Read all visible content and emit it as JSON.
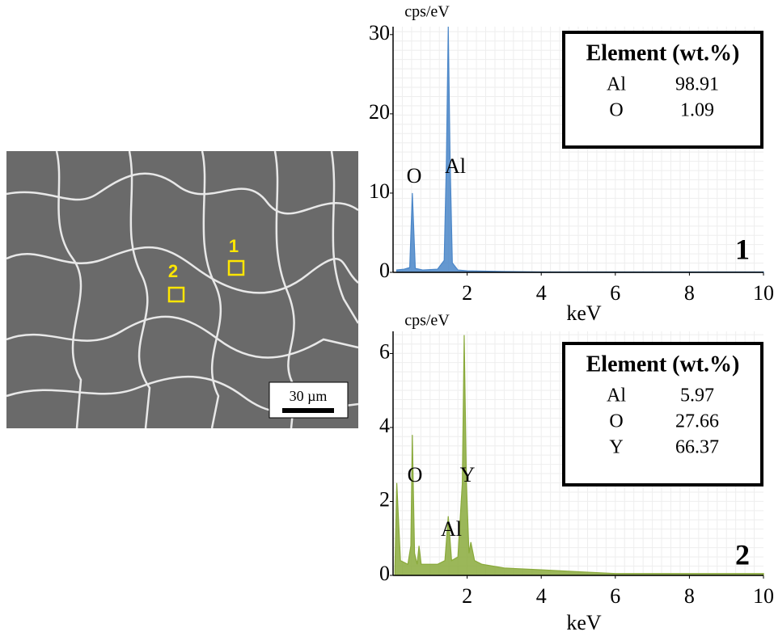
{
  "micrograph": {
    "markers": [
      "1",
      "2"
    ],
    "scale_bar": "30 µm"
  },
  "chart_data": [
    {
      "type": "area",
      "y_label": "cps/eV",
      "x_label": "keV",
      "panel": "1",
      "color": "#4a86c8",
      "peak_labels": [
        "O",
        "Al"
      ],
      "x": [
        0.1,
        0.3,
        0.45,
        0.52,
        0.6,
        0.8,
        1.2,
        1.38,
        1.44,
        1.49,
        1.54,
        1.6,
        1.75,
        2,
        3,
        4,
        5,
        6,
        7,
        8,
        9,
        10
      ],
      "values": [
        0.3,
        0.4,
        0.6,
        10,
        0.5,
        0.3,
        0.4,
        1.5,
        14,
        31,
        14,
        1.2,
        0.3,
        0.2,
        0.1,
        0.05,
        0.05,
        0.05,
        0.05,
        0.05,
        0.05,
        0.05
      ],
      "xlim": [
        0,
        10
      ],
      "xticks": [
        2,
        4,
        6,
        8,
        10
      ],
      "ylim": [
        0,
        31
      ],
      "yticks": [
        0,
        10,
        20,
        30
      ],
      "grid": true,
      "table": {
        "header": "Element (wt.%)",
        "rows": [
          [
            "Al",
            "98.91"
          ],
          [
            "O",
            "1.09"
          ]
        ]
      }
    },
    {
      "type": "area",
      "y_label": "cps/eV",
      "x_label": "keV",
      "panel": "2",
      "color": "#8aaa3c",
      "peak_labels": [
        "O",
        "Y",
        "Al"
      ],
      "x": [
        0.05,
        0.1,
        0.2,
        0.4,
        0.48,
        0.52,
        0.58,
        0.65,
        0.7,
        0.76,
        0.9,
        1.2,
        1.4,
        1.49,
        1.58,
        1.75,
        1.87,
        1.92,
        1.98,
        2.05,
        2.1,
        2.2,
        2.4,
        3,
        4,
        5,
        6,
        7,
        8,
        9,
        10
      ],
      "values": [
        0.2,
        2.5,
        0.4,
        0.3,
        0.8,
        3.8,
        0.6,
        0.3,
        0.8,
        0.3,
        0.3,
        0.3,
        0.4,
        1.6,
        0.4,
        0.5,
        2.5,
        6.5,
        2.5,
        0.6,
        0.9,
        0.4,
        0.3,
        0.2,
        0.15,
        0.1,
        0.05,
        0.05,
        0.05,
        0.05,
        0.05
      ],
      "xlim": [
        0,
        10
      ],
      "xticks": [
        2,
        4,
        6,
        8,
        10
      ],
      "ylim": [
        0,
        6.6
      ],
      "yticks": [
        0,
        2,
        4,
        6
      ],
      "grid": true,
      "table": {
        "header": "Element (wt.%)",
        "rows": [
          [
            "Al",
            "5.97"
          ],
          [
            "O",
            "27.66"
          ],
          [
            "Y",
            "66.37"
          ]
        ]
      }
    }
  ]
}
